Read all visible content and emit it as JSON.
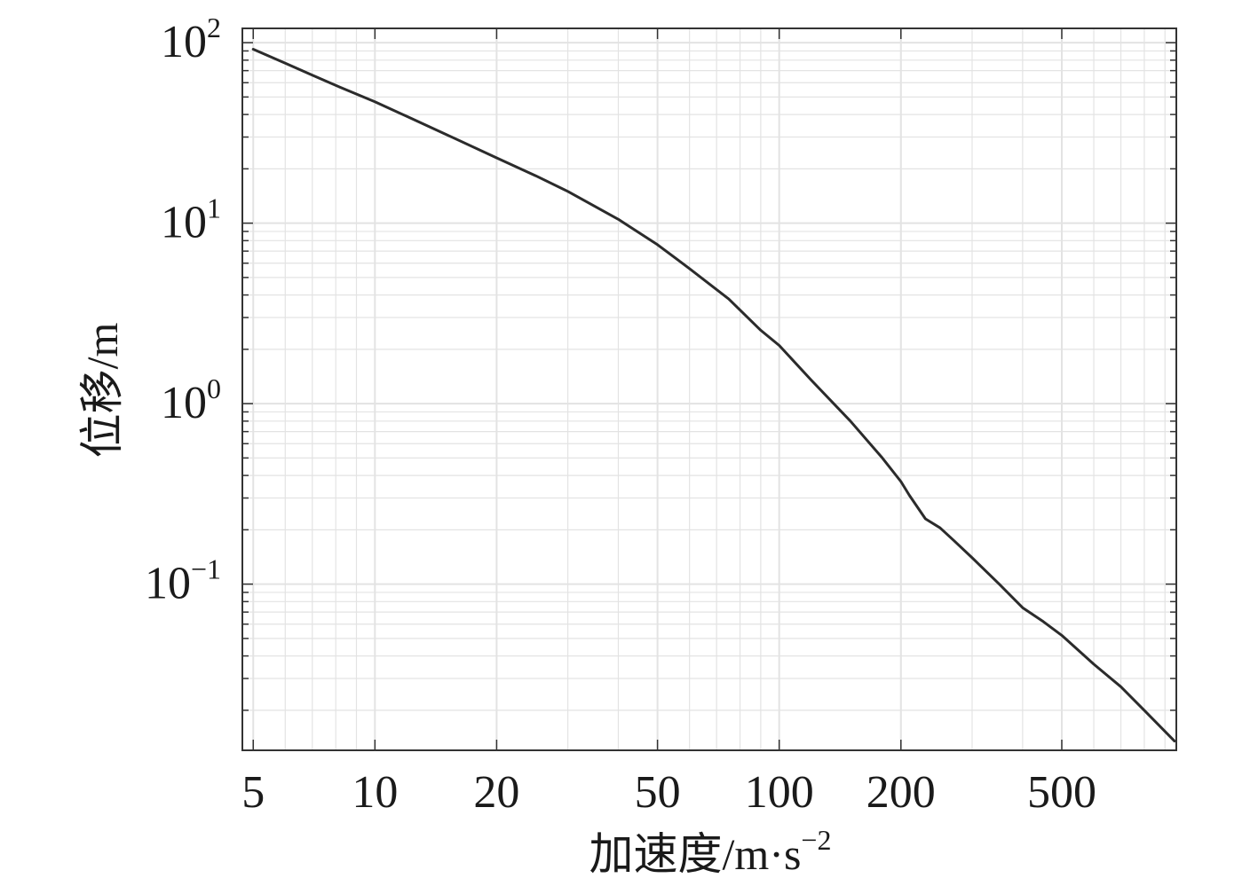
{
  "chart_data": {
    "type": "line",
    "title": "",
    "xlabel": "加速度/m·s",
    "xlabel_exp": "−2",
    "ylabel": "位移/m",
    "x_scale": "log",
    "y_scale": "log",
    "xlim": [
      4.7,
      960
    ],
    "ylim": [
      0.012,
      120
    ],
    "grid": true,
    "line_color": "#2b2b2b",
    "grid_color": "#e3e3e3",
    "x_ticks": [
      {
        "value": 5,
        "label": "5"
      },
      {
        "value": 10,
        "label": "10"
      },
      {
        "value": 20,
        "label": "20"
      },
      {
        "value": 50,
        "label": "50"
      },
      {
        "value": 100,
        "label": "100"
      },
      {
        "value": 200,
        "label": "200"
      },
      {
        "value": 500,
        "label": "500"
      }
    ],
    "y_ticks": [
      {
        "value": 100,
        "base": "10",
        "exp": "2"
      },
      {
        "value": 10,
        "base": "10",
        "exp": "1"
      },
      {
        "value": 1,
        "base": "10",
        "exp": "0"
      },
      {
        "value": 0.1,
        "base": "10",
        "exp": "−1"
      }
    ],
    "series": [
      {
        "x": [
          5,
          6,
          7,
          8,
          10,
          12,
          15,
          20,
          25,
          30,
          40,
          50,
          60,
          75,
          90,
          100,
          120,
          150,
          180,
          200,
          210,
          230,
          250,
          270,
          300,
          350,
          400,
          450,
          500,
          600,
          700,
          800,
          950
        ],
        "y": [
          92,
          77,
          66,
          58,
          47,
          39,
          31,
          23,
          18.3,
          15,
          10.5,
          7.6,
          5.6,
          3.8,
          2.55,
          2.1,
          1.35,
          0.8,
          0.5,
          0.37,
          0.31,
          0.23,
          0.205,
          0.175,
          0.14,
          0.1,
          0.074,
          0.062,
          0.052,
          0.036,
          0.027,
          0.02,
          0.0135
        ]
      }
    ]
  }
}
